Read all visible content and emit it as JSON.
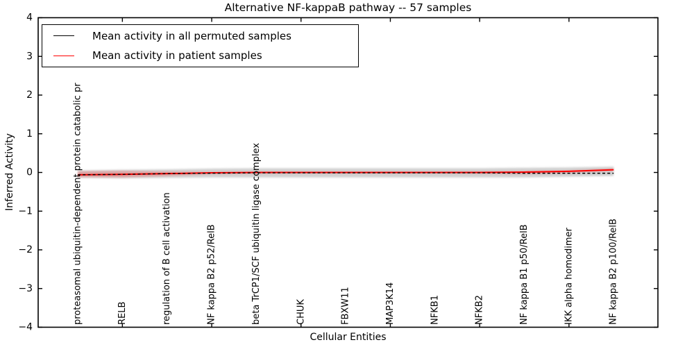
{
  "figure": {
    "title": "Alternative NF-kappaB pathway -- 57 samples",
    "xlabel": "Cellular Entities",
    "ylabel": "Inferred Activity"
  },
  "legend": {
    "entries": [
      {
        "label": "Mean activity in all permuted samples",
        "color": "#000000"
      },
      {
        "label": "Mean activity in patient samples",
        "color": "#ff0000"
      }
    ]
  },
  "chart_data": {
    "type": "line",
    "title": "Alternative NF-kappaB pathway -- 57 samples",
    "xlabel": "Cellular Entities",
    "ylabel": "Inferred Activity",
    "ylim": [
      -4,
      4
    ],
    "ytick_labels": [
      "4",
      "3",
      "2",
      "1",
      "0",
      "−1",
      "−2",
      "−3",
      "−4"
    ],
    "ytick_values": [
      4,
      3,
      2,
      1,
      0,
      -1,
      -2,
      -3,
      -4
    ],
    "xtick_indices": [
      1,
      3,
      5,
      7,
      9,
      11
    ],
    "grid": false,
    "legend_position": "upper left",
    "categories": [
      "proteasomal ubiquitin-dependent protein catabolic pr",
      "RELB",
      "regulation of B cell activation",
      "NF kappa B2 p52/RelB",
      "beta TrCP1/SCF ubiquitin ligase complex",
      "CHUK",
      "FBXW11",
      "MAP3K14",
      "NFKB1",
      "NFKB2",
      "NF kappa B1 p50/RelB",
      "IKK alpha homodimer",
      "NF kappa B2 p100/RelB"
    ],
    "series": [
      {
        "name": "Mean activity in all permuted samples",
        "color": "#000000",
        "style": "dashed",
        "values": [
          -0.06,
          -0.05,
          -0.03,
          -0.02,
          -0.01,
          -0.01,
          -0.01,
          -0.01,
          -0.01,
          -0.01,
          -0.02,
          -0.02,
          -0.02
        ]
      },
      {
        "name": "Mean activity in patient samples",
        "color": "#ff0000",
        "style": "solid",
        "values": [
          -0.06,
          -0.05,
          -0.03,
          -0.01,
          0.0,
          0.0,
          0.0,
          0.0,
          0.0,
          0.0,
          0.01,
          0.03,
          0.07
        ]
      }
    ],
    "bands": [
      {
        "name": "permuted-samples-spread",
        "color": "#999999",
        "alpha": 0.45,
        "upper": [
          0.05,
          0.07,
          0.08,
          0.1,
          0.11,
          0.11,
          0.11,
          0.11,
          0.11,
          0.11,
          0.12,
          0.13,
          0.15
        ],
        "lower": [
          -0.14,
          -0.15,
          -0.14,
          -0.13,
          -0.13,
          -0.13,
          -0.13,
          -0.13,
          -0.13,
          -0.13,
          -0.13,
          -0.11,
          -0.09
        ]
      },
      {
        "name": "patient-samples-spread",
        "color": "#ff0000",
        "alpha": 0.22,
        "upper": [
          0.03,
          0.04,
          0.02,
          0.01,
          0.01,
          0.01,
          0.01,
          0.01,
          0.01,
          0.02,
          0.03,
          0.05,
          0.1
        ],
        "lower": [
          -0.12,
          -0.13,
          -0.09,
          -0.04,
          -0.03,
          -0.02,
          -0.02,
          -0.02,
          -0.02,
          -0.03,
          -0.04,
          -0.01,
          0.04
        ]
      }
    ]
  }
}
